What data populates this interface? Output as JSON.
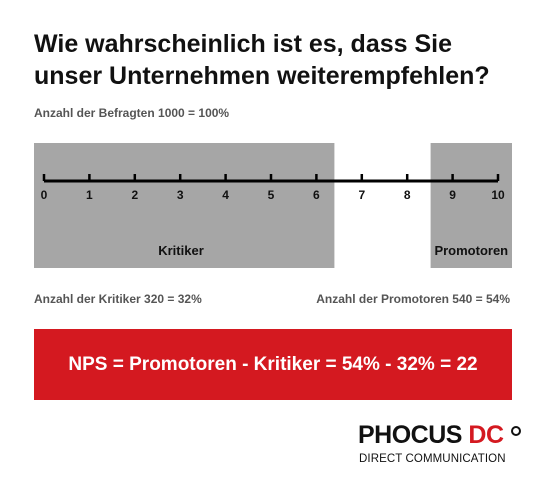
{
  "title_line1": "Wie wahrscheinlich ist es, dass Sie",
  "title_line2": "unser Unternehmen weiterempfehlen?",
  "respondents_text": "Anzahl der Befragten 1000 = 100%",
  "scale": {
    "ticks": [
      "0",
      "1",
      "2",
      "3",
      "4",
      "5",
      "6",
      "7",
      "8",
      "9",
      "10"
    ],
    "min": 0,
    "max": 10,
    "detractors": {
      "label": "Kritiker",
      "from": 0,
      "to": 6
    },
    "promoters": {
      "label": "Promotoren",
      "from": 9,
      "to": 10
    }
  },
  "detractors_count_text": "Anzahl der Kritiker 320 = 32%",
  "promoters_count_text": "Anzahl der Promotoren 540 = 54%",
  "nps_formula": "NPS = Promotoren - Kritiker = 54% - 32% = 22",
  "logo": {
    "word1": "PHOCUS",
    "word2": "DC",
    "tagline": "DIRECT COMMUNICATION"
  },
  "colors": {
    "accent_red": "#d41920",
    "zone_gray": "#a6a6a6",
    "text_dark": "#111111",
    "text_gray": "#555555"
  }
}
